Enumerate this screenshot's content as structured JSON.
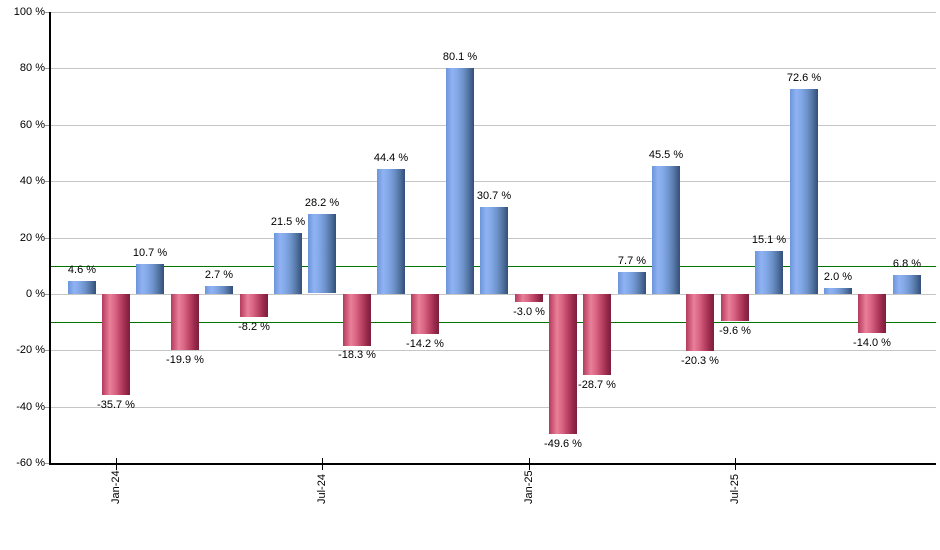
{
  "chart_data": {
    "type": "bar",
    "title": "",
    "description": "Monthly percentage returns bar chart",
    "values": [
      4.6,
      -35.7,
      10.7,
      -19.9,
      2.7,
      -8.2,
      21.5,
      28.2,
      -18.3,
      44.4,
      -14.2,
      80.1,
      30.7,
      -3.0,
      -49.6,
      -28.7,
      7.7,
      45.5,
      -20.3,
      -9.6,
      15.1,
      72.6,
      2.0,
      -14.0,
      6.8
    ],
    "bar_labels": [
      "4.6 %",
      "-35.7 %",
      "10.7 %",
      "-19.9 %",
      "2.7 %",
      "-8.2 %",
      "21.5 %",
      "28.2 %",
      "-18.3 %",
      "44.4 %",
      "-14.2 %",
      "80.1 %",
      "30.7 %",
      "-3.0 %",
      "-49.6 %",
      "-28.7 %",
      "7.7 %",
      "45.5 %",
      "-20.3 %",
      "-9.6 %",
      "15.1 %",
      "72.6 %",
      "2.0 %",
      "-14.0 %",
      "6.8 %"
    ],
    "x_ticks": [
      {
        "label": "Jan-24",
        "bar_index": 1
      },
      {
        "label": "Jul-24",
        "bar_index": 7
      },
      {
        "label": "Jan-25",
        "bar_index": 13
      },
      {
        "label": "Jul-25",
        "bar_index": 19
      }
    ],
    "y_ticks": [
      {
        "label": "100 %",
        "value": 100
      },
      {
        "label": "80 %",
        "value": 80
      },
      {
        "label": "60 %",
        "value": 60
      },
      {
        "label": "40 %",
        "value": 40
      },
      {
        "label": "20 %",
        "value": 20
      },
      {
        "label": "0 %",
        "value": 0
      },
      {
        "label": "-20 %",
        "value": -20
      },
      {
        "label": "-40 %",
        "value": -40
      },
      {
        "label": "-60 %",
        "value": -60
      }
    ],
    "ylim": [
      -60,
      100
    ],
    "xlabel": "",
    "ylabel": "",
    "grid": true,
    "legend": false,
    "reference_lines": [
      {
        "value": 10,
        "color": "#007500"
      },
      {
        "value": -10,
        "color": "#007500"
      }
    ],
    "colors": {
      "positive_bar": "#7ba2e6",
      "negative_bar": "#cf4a6a",
      "reference_line": "#007500",
      "gridline": "#c6c6c6",
      "axis": "#000000",
      "text": "#000000",
      "background": "#ffffff"
    }
  }
}
